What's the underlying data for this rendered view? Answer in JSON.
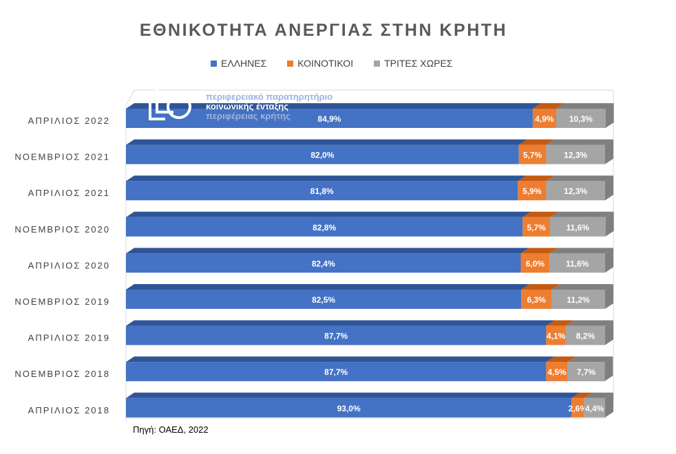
{
  "title": "ΕΘΝΙΚΟΤΗΤΑ ΑΝΕΡΓΙΑΣ ΣΤΗΝ ΚΡΗΤΗ",
  "source": "Πηγή: ΟΑΕΔ, 2022",
  "logo": {
    "line1": "περιφερειακό παρατηρητήριο",
    "line2": "κοινωνικής ένταξης",
    "line3": "περιφέρειας κρήτης"
  },
  "colors": {
    "ellines": "#4472C4",
    "koinotikoi": "#ED7D31",
    "trites": "#A5A5A5"
  },
  "chart_data": {
    "type": "bar",
    "orientation": "horizontal",
    "stacked": "100%",
    "title": "ΕΘΝΙΚΟΤΗΤΑ ΑΝΕΡΓΙΑΣ ΣΤΗΝ ΚΡΗΤΗ",
    "legend_position": "top",
    "categories": [
      "ΑΠΡΙΛΙΟΣ 2022",
      "ΝΟΕΜΒΡΙΟΣ 2021",
      "ΑΠΡΙΛΙΟΣ 2021",
      "ΝΟΕΜΒΡΙΟΣ 2020",
      "ΑΠΡΙΛΙΟΣ 2020",
      "ΝΟΕΜΒΡΙΟΣ 2019",
      "ΑΠΡΙΛΙΟΣ 2019",
      "ΝΟΕΜΒΡΙΟΣ 2018",
      "ΑΠΡΙΛΙΟΣ 2018"
    ],
    "series": [
      {
        "name": "ΕΛΛΗΝΕΣ",
        "values": [
          84.9,
          82.0,
          81.8,
          82.8,
          82.4,
          82.5,
          87.7,
          87.7,
          93.0
        ],
        "labels": [
          "84,9%",
          "82,0%",
          "81,8%",
          "82,8%",
          "82,4%",
          "82,5%",
          "87,7%",
          "87,7%",
          "93,0%"
        ]
      },
      {
        "name": "ΚΟΙΝΟΤΙΚΟΙ",
        "values": [
          4.9,
          5.7,
          5.9,
          5.7,
          6.0,
          6.3,
          4.1,
          4.5,
          2.6
        ],
        "labels": [
          "4,9%",
          "5,7%",
          "5,9%",
          "5,7%",
          "6,0%",
          "6,3%",
          "4,1%",
          "4,5%",
          "2,6%"
        ]
      },
      {
        "name": "ΤΡΙΤΕΣ ΧΩΡΕΣ",
        "values": [
          10.3,
          12.3,
          12.3,
          11.6,
          11.6,
          11.2,
          8.2,
          7.7,
          4.4
        ],
        "labels": [
          "10,3%",
          "12,3%",
          "12,3%",
          "11,6%",
          "11,6%",
          "11,2%",
          "8,2%",
          "7,7%",
          "4,4%"
        ]
      }
    ]
  }
}
